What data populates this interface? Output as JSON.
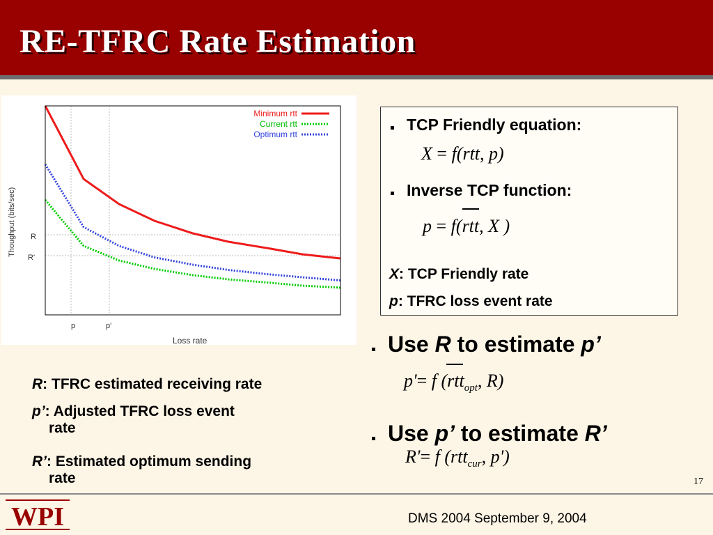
{
  "slide": {
    "title": "RE-TFRC Rate Estimation",
    "page_number": "17",
    "footer": "DMS 2004 September 9, 2004",
    "logo_text": "WPI",
    "colors": {
      "header": "#990000",
      "background": "#fdf5e6"
    }
  },
  "box": {
    "b1_label": "TCP Friendly equation:",
    "b2_label": "Inverse TCP function:",
    "eq1": {
      "lhs": "X",
      "eq": "=",
      "f": "f",
      "args": "(rtt, p)"
    },
    "eq2": {
      "lhs": "p",
      "eq": "=",
      "f": "f",
      "args": "(rtt, X )"
    },
    "def_x_sym": "X",
    "def_x_text": ": TCP Friendly rate",
    "def_p_sym": "p",
    "def_p_text": ": TFRC loss event rate"
  },
  "main": {
    "b3_use": "Use",
    "b3_sym": "R",
    "b3_mid": "to estimate",
    "b3_sym2": "p’",
    "eq3": {
      "lhs": "p'",
      "eq": "=",
      "f": "f",
      "open": "(rtt",
      "sub": "opt",
      "rest": ", R)"
    },
    "b4_use": "Use",
    "b4_sym": "p’",
    "b4_mid": "to estimate",
    "b4_sym2": "R’",
    "eq4": {
      "lhs": "R'",
      "eq": "=",
      "f": "f",
      "open": "(rtt",
      "sub": "cur",
      "rest": ", p')"
    }
  },
  "defs": {
    "r_sym": "R",
    "r_text": ": TFRC estimated receiving rate",
    "p_sym": "p’",
    "p_text1": ": Adjusted TFRC loss event",
    "p_text2": "rate",
    "rp_sym": "R’",
    "rp_text1": ": Estimated optimum sending",
    "rp_text2": "rate"
  },
  "chart_data": {
    "type": "line",
    "xlabel": "Loss rate",
    "ylabel": "Thoughput (bits/sec)",
    "xticks": [
      "p",
      "p'"
    ],
    "yticks": [
      "R",
      "R'"
    ],
    "legend_position": "top-right",
    "series": [
      {
        "name": "Minimum rtt",
        "color": "#ee1c1c",
        "style": "solid",
        "x": [
          0.0,
          0.13,
          0.25,
          0.37,
          0.5,
          0.62,
          0.75,
          0.87,
          1.0
        ],
        "y": [
          1.0,
          0.65,
          0.53,
          0.45,
          0.39,
          0.35,
          0.32,
          0.29,
          0.27
        ]
      },
      {
        "name": "Current rtt",
        "color": "#00cc00",
        "style": "dotted",
        "x": [
          0.0,
          0.13,
          0.25,
          0.37,
          0.5,
          0.62,
          0.75,
          0.87,
          1.0
        ],
        "y": [
          0.55,
          0.33,
          0.26,
          0.22,
          0.19,
          0.17,
          0.155,
          0.14,
          0.13
        ]
      },
      {
        "name": "Optimum rtt",
        "color": "#3344dd",
        "style": "dotted",
        "x": [
          0.0,
          0.13,
          0.25,
          0.37,
          0.5,
          0.62,
          0.75,
          0.87,
          1.0
        ],
        "y": [
          0.72,
          0.42,
          0.33,
          0.275,
          0.24,
          0.215,
          0.195,
          0.18,
          0.165
        ]
      }
    ]
  }
}
